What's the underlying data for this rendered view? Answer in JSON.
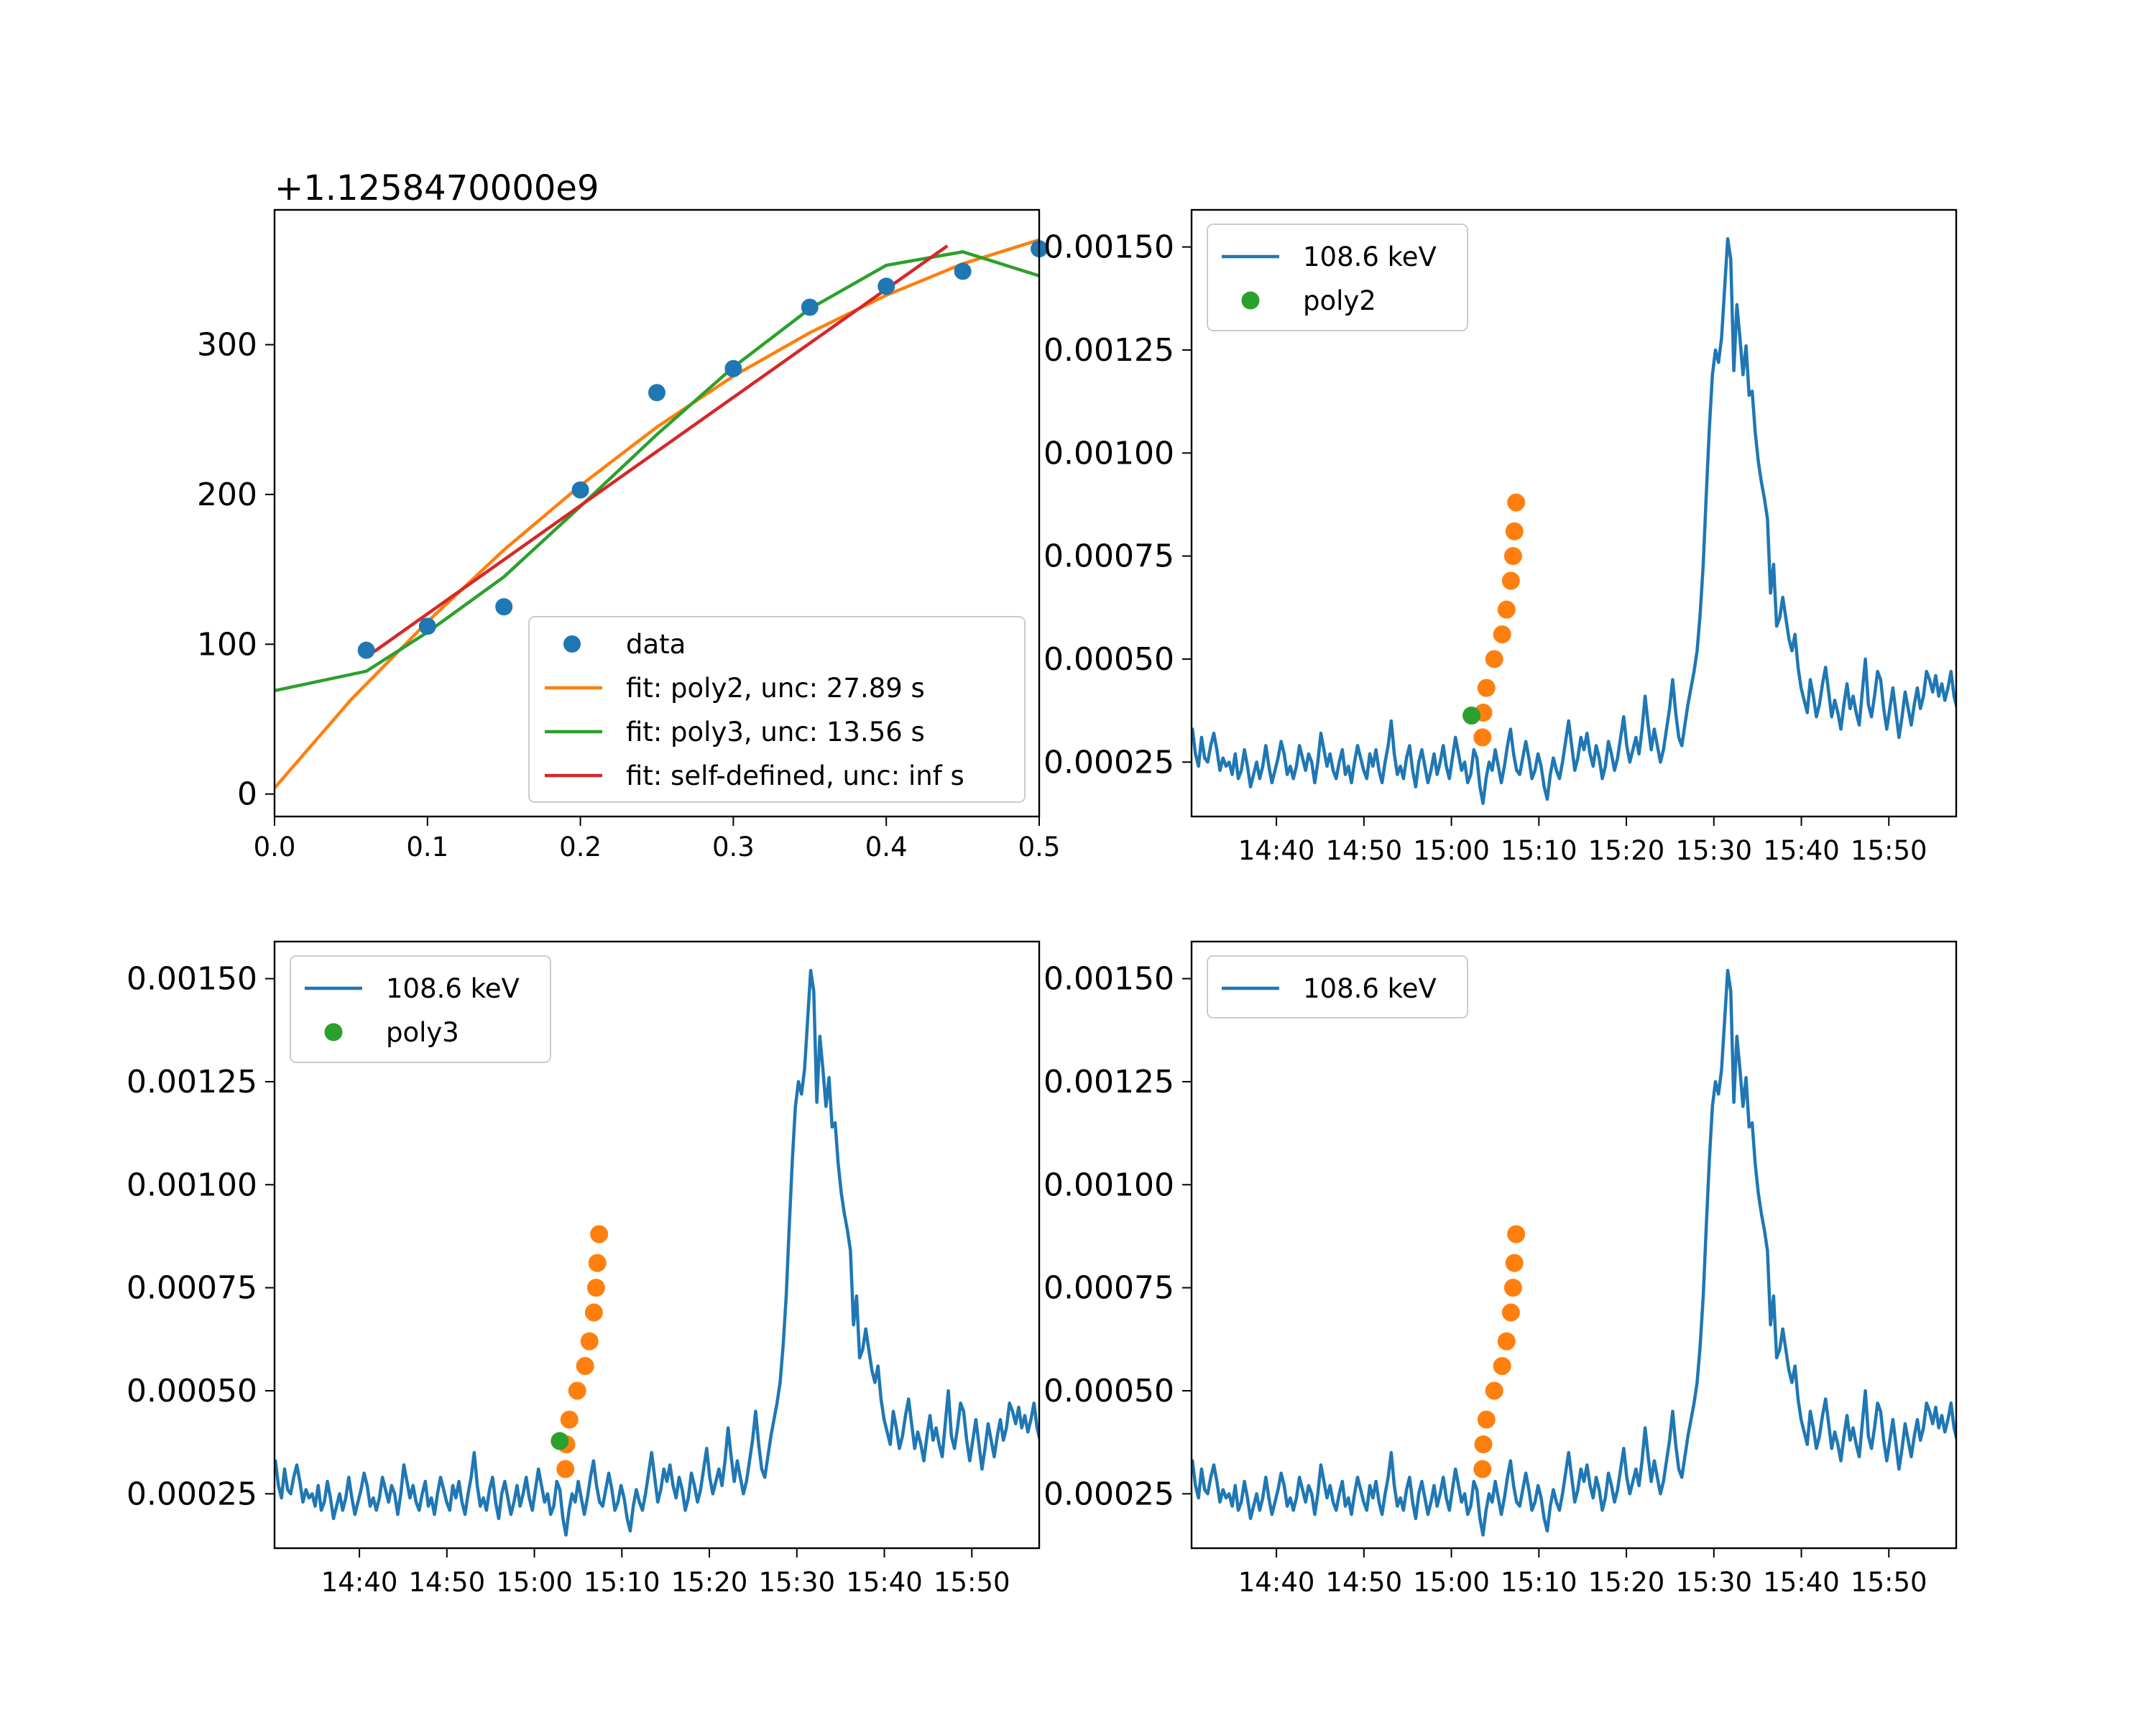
{
  "chart_data": [
    {
      "id": "fit",
      "type": "scatter+line",
      "offset_text": "+1.1258470000e9",
      "xlim": [
        0.0,
        0.5
      ],
      "ylim": [
        -15,
        390
      ],
      "xticks": [
        0.0,
        0.1,
        0.2,
        0.3,
        0.4,
        0.5
      ],
      "xtick_labels": [
        "0.0",
        "0.1",
        "0.2",
        "0.3",
        "0.4",
        "0.5"
      ],
      "yticks": [
        0,
        100,
        200,
        300
      ],
      "ytick_labels": [
        "0",
        "100",
        "200",
        "300"
      ],
      "grid": false,
      "legend_position": "lower-right",
      "data": {
        "name": "data",
        "color": "#1f77b4",
        "x": [
          0.06,
          0.1,
          0.15,
          0.2,
          0.25,
          0.3,
          0.35,
          0.4,
          0.45,
          0.5
        ],
        "y": [
          96,
          112,
          125,
          203,
          268,
          284,
          325,
          339,
          349,
          364
        ]
      },
      "fits": [
        {
          "name": "fit: poly2, unc: 27.89 s",
          "color": "#ff7f0e",
          "x": [
            0.0,
            0.05,
            0.1,
            0.15,
            0.2,
            0.25,
            0.3,
            0.35,
            0.4,
            0.45,
            0.5
          ],
          "y": [
            4,
            63,
            115,
            163,
            206,
            245,
            279,
            308,
            333,
            354,
            370
          ]
        },
        {
          "name": "fit: poly3, unc: 13.56 s",
          "color": "#2ca02c",
          "x": [
            0.0,
            0.06,
            0.1,
            0.15,
            0.2,
            0.25,
            0.3,
            0.35,
            0.4,
            0.45,
            0.5
          ],
          "y": [
            69,
            82,
            108,
            145,
            192,
            240,
            285,
            324,
            353,
            362,
            346
          ]
        },
        {
          "name": "fit: self-defined, unc: inf s",
          "color": "#d62728",
          "x": [
            0.065,
            0.44
          ],
          "y": [
            95,
            366
          ]
        }
      ]
    },
    {
      "id": "lightcurve-poly2",
      "type": "line+scatter",
      "xlim": [
        -0.39,
        0.44
      ],
      "ylim": [
        0.000118,
        0.00159
      ],
      "xticks": [
        0,
        0.0069444,
        0.0138889,
        0.0208333,
        0.0277778,
        0.0347222,
        0.0416667,
        0.0486111
      ],
      "xtick_labels": [
        "14:40",
        "14:50",
        "15:00",
        "15:10",
        "15:20",
        "15:30",
        "15:40",
        "15:50"
      ],
      "yticks": [
        0.00025,
        0.0005,
        0.00075,
        0.001,
        0.00125,
        0.0015
      ],
      "ytick_labels": [
        "0.00025",
        "0.00050",
        "0.00075",
        "0.00100",
        "0.00125",
        "0.00150"
      ],
      "legend_position": "upper-left",
      "series": {
        "name": "108.6 keV",
        "color": "#1f77b4"
      },
      "marker": {
        "name": "poly2",
        "color": "#2ca02c",
        "x": 0.0257,
        "y": 0.000363
      },
      "rise_points": {
        "color": "#ff7f0e"
      }
    },
    {
      "id": "lightcurve-poly3",
      "type": "line+scatter",
      "legend_position": "upper-left",
      "xtick_labels": [
        "14:40",
        "14:50",
        "15:00",
        "15:10",
        "15:20",
        "15:30",
        "15:40",
        "15:50"
      ],
      "ytick_labels": [
        "0.00025",
        "0.00050",
        "0.00075",
        "0.00100",
        "0.00125",
        "0.00150"
      ],
      "series": {
        "name": "108.6 keV",
        "color": "#1f77b4"
      },
      "marker": {
        "name": "poly3",
        "color": "#2ca02c",
        "x": 0.0256,
        "y": 0.000378
      },
      "rise_points": {
        "color": "#ff7f0e"
      }
    },
    {
      "id": "lightcurve-self",
      "type": "line+scatter",
      "legend_position": "upper-left",
      "xtick_labels": [
        "14:40",
        "14:50",
        "15:00",
        "15:10",
        "15:20",
        "15:30",
        "15:40",
        "15:50"
      ],
      "ytick_labels": [
        "0.00025",
        "0.00050",
        "0.00075",
        "0.00100",
        "0.00125",
        "0.00150"
      ],
      "series": {
        "name": "108.6 keV",
        "color": "#1f77b4"
      },
      "rise_points": {
        "color": "#ff7f0e"
      }
    }
  ],
  "lightcurve": {
    "x_start_minutes": -11.7,
    "x_end_minutes": 81.3,
    "ylim": [
      0.000118,
      0.00159
    ],
    "xtick_minutes": [
      0,
      10,
      20,
      30,
      40,
      50,
      60,
      70
    ],
    "xlim_minutes": [
      -9.7,
      77.7
    ],
    "y": [
      0.00025,
      0.00027,
      0.0003,
      0.00028,
      0.00031,
      0.00029,
      0.00033,
      0.00027,
      0.00024,
      0.00031,
      0.00026,
      0.00025,
      0.00029,
      0.00032,
      0.00028,
      0.00023,
      0.00026,
      0.00024,
      0.00025,
      0.00022,
      0.00027,
      0.00021,
      0.00023,
      0.00028,
      0.00024,
      0.00019,
      0.00022,
      0.00025,
      0.00021,
      0.00024,
      0.00029,
      0.00024,
      0.0002,
      0.00023,
      0.00026,
      0.0003,
      0.00027,
      0.00022,
      0.00024,
      0.00021,
      0.00024,
      0.00029,
      0.00026,
      0.00023,
      0.00027,
      0.00025,
      0.0002,
      0.00025,
      0.00032,
      0.00028,
      0.00024,
      0.00027,
      0.00023,
      0.00021,
      0.00025,
      0.00028,
      0.00022,
      0.00024,
      0.0002,
      0.00025,
      0.00029,
      0.00026,
      0.00023,
      0.00021,
      0.00027,
      0.00024,
      0.00028,
      0.00023,
      0.0002,
      0.00025,
      0.00029,
      0.00035,
      0.00027,
      0.00022,
      0.00024,
      0.00021,
      0.00026,
      0.00029,
      0.00023,
      0.00019,
      0.00025,
      0.00028,
      0.00024,
      0.0002,
      0.00023,
      0.00027,
      0.00022,
      0.00025,
      0.00029,
      0.00024,
      0.00021,
      0.00026,
      0.00031,
      0.00027,
      0.00023,
      0.00025,
      0.0002,
      0.00022,
      0.00028,
      0.00026,
      0.00019,
      0.00015,
      0.00021,
      0.00025,
      0.00023,
      0.00028,
      0.00024,
      0.0002,
      0.00024,
      0.00029,
      0.00033,
      0.00027,
      0.00023,
      0.00022,
      0.00026,
      0.0003,
      0.00026,
      0.00021,
      0.00023,
      0.00027,
      0.00024,
      0.00019,
      0.00016,
      0.00022,
      0.00026,
      0.00023,
      0.00021,
      0.00025,
      0.0003,
      0.00035,
      0.00029,
      0.00023,
      0.00026,
      0.00031,
      0.00028,
      0.00032,
      0.00027,
      0.00024,
      0.00029,
      0.00026,
      0.00021,
      0.00024,
      0.0003,
      0.00027,
      0.00023,
      0.00026,
      0.00031,
      0.00036,
      0.00029,
      0.00025,
      0.00028,
      0.00031,
      0.00027,
      0.00033,
      0.00041,
      0.00034,
      0.00028,
      0.00033,
      0.00029,
      0.00025,
      0.00028,
      0.00033,
      0.00038,
      0.00045,
      0.00037,
      0.00031,
      0.00029,
      0.00034,
      0.00039,
      0.00043,
      0.00047,
      0.00052,
      0.00061,
      0.00073,
      0.0009,
      0.00106,
      0.00119,
      0.00125,
      0.00122,
      0.00128,
      0.0014,
      0.00152,
      0.00147,
      0.0012,
      0.00136,
      0.00128,
      0.00119,
      0.00126,
      0.00114,
      0.00115,
      0.00105,
      0.00098,
      0.00093,
      0.00089,
      0.00084,
      0.00066,
      0.00073,
      0.00058,
      0.0006,
      0.00065,
      0.0006,
      0.00055,
      0.00052,
      0.00056,
      0.00048,
      0.00043,
      0.0004,
      0.00037,
      0.00045,
      0.00041,
      0.00036,
      0.00039,
      0.00044,
      0.00048,
      0.00042,
      0.00036,
      0.0004,
      0.00037,
      0.00033,
      0.00039,
      0.00044,
      0.00038,
      0.00041,
      0.00037,
      0.00034,
      0.00042,
      0.0005,
      0.00039,
      0.00036,
      0.00041,
      0.00047,
      0.00045,
      0.00038,
      0.00033,
      0.00038,
      0.00043,
      0.00037,
      0.00031,
      0.00036,
      0.00042,
      0.00038,
      0.00034,
      0.00039,
      0.00043,
      0.00038,
      0.00041,
      0.00047,
      0.00045,
      0.00042,
      0.00046,
      0.00041,
      0.00044,
      0.0004,
      0.00043,
      0.00047,
      0.00041,
      0.00038,
      0.00043,
      0.00046,
      0.00042,
      0.00039,
      0.00043,
      0.00047,
      0.00049,
      0.00041,
      0.00036,
      0.00031
    ],
    "rise_points_y": [
      0.00031,
      0.00037,
      0.00043,
      0.0005,
      0.00056,
      0.00062,
      0.00069,
      0.00075,
      0.00081,
      0.00088
    ]
  }
}
